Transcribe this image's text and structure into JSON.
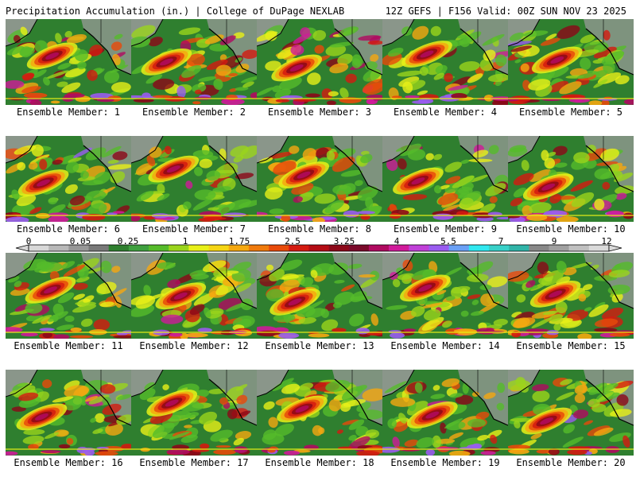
{
  "header": {
    "title_left": "Precipitation Accumulation (in.) | College of DuPage NEXLAB",
    "title_right": "12Z GEFS | F156 Valid: 00Z SUN NOV 23 2025"
  },
  "panels": [
    {
      "label": "Ensemble Member: 1"
    },
    {
      "label": "Ensemble Member: 2"
    },
    {
      "label": "Ensemble Member: 3"
    },
    {
      "label": "Ensemble Member: 4"
    },
    {
      "label": "Ensemble Member: 5"
    },
    {
      "label": "Ensemble Member: 6"
    },
    {
      "label": "Ensemble Member: 7"
    },
    {
      "label": "Ensemble Member: 8"
    },
    {
      "label": "Ensemble Member: 9"
    },
    {
      "label": "Ensemble Member: 10"
    },
    {
      "label": "Ensemble Member: 11"
    },
    {
      "label": "Ensemble Member: 12"
    },
    {
      "label": "Ensemble Member: 13"
    },
    {
      "label": "Ensemble Member: 14"
    },
    {
      "label": "Ensemble Member: 15"
    },
    {
      "label": "Ensemble Member: 16"
    },
    {
      "label": "Ensemble Member: 17"
    },
    {
      "label": "Ensemble Member: 18"
    },
    {
      "label": "Ensemble Member: 19"
    },
    {
      "label": "Ensemble Member: 20"
    }
  ],
  "colorbar": {
    "tick_labels": [
      "0",
      "0.05",
      "0.25",
      "1",
      "1.75",
      "2.5",
      "3.25",
      "4",
      "5.5",
      "7",
      "9",
      "12"
    ],
    "colors": [
      "#d8d8d8",
      "#b8b8b8",
      "#989898",
      "#787878",
      "#2f7f2f",
      "#3fa03f",
      "#55bb2a",
      "#9ad41c",
      "#e8f018",
      "#f5d514",
      "#f5a810",
      "#f07a0c",
      "#e84a0a",
      "#d41a10",
      "#b40c14",
      "#8c0818",
      "#7a0a2a",
      "#b00a60",
      "#d01a9a",
      "#c040d8",
      "#9a5cf0",
      "#6aa0f5",
      "#30e8f0",
      "#38d0c8",
      "#30b4a8",
      "#888888",
      "#a0a0a0",
      "#c0c0c0",
      "#dadada"
    ]
  },
  "map_colors": {
    "ocean_base": "#2f7f2f",
    "band_colors": [
      "#55bb2a",
      "#9ad41c",
      "#e8f018",
      "#f5a810",
      "#e84a0a",
      "#d41a10",
      "#8c0818",
      "#b00a60",
      "#d01a9a",
      "#9a5cf0"
    ],
    "land_gray": "#9a9a9a",
    "outline": "#000000"
  }
}
